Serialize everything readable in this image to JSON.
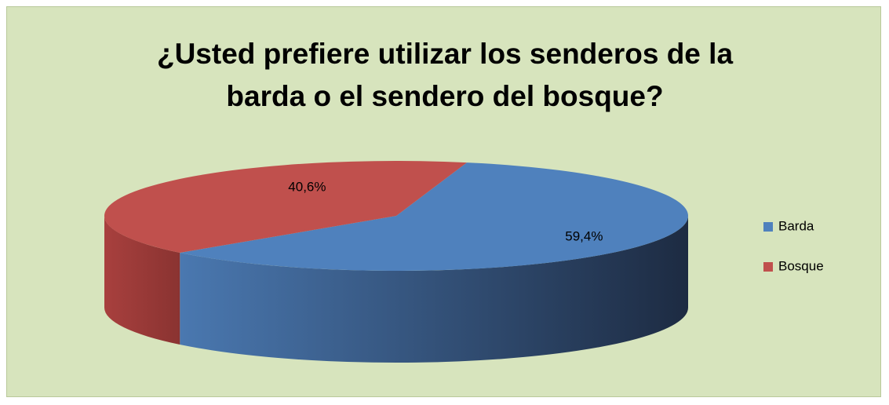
{
  "chart_data": {
    "type": "pie",
    "title": "¿Usted prefiere utilizar los senderos de la barda o el sendero del bosque?",
    "categories": [
      "Barda",
      "Bosque"
    ],
    "values": [
      59.4,
      40.6
    ],
    "value_labels": [
      "59,4%",
      "40,6%"
    ],
    "colors": [
      "#4f81bd",
      "#c0504d"
    ],
    "legend": "right"
  }
}
